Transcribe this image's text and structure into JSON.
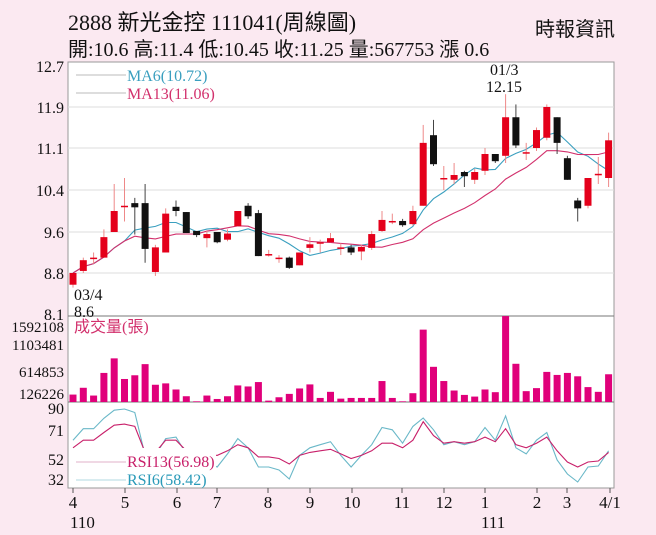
{
  "header": {
    "title": "2888  新光金控 111041(周線圖)",
    "quote": "開:10.6 高:11.4 低:10.45 收:11.25 量:567753 漲 0.6",
    "source": "時報資訊"
  },
  "colors": {
    "up": "#e4001b",
    "down": "#111111",
    "ma6": "#3a9fbf",
    "ma13": "#d2306c",
    "volume": "#e0007a",
    "rsi13": "#c8206a",
    "rsi6": "#6ab8c8",
    "background": "#fbe9f1"
  },
  "chart_data": [
    {
      "type": "candlestick",
      "name": "price",
      "y_ticks": [
        "12.7",
        "11.9",
        "11.1",
        "10.4",
        "9.6",
        "8.8",
        "8.1"
      ],
      "legend": [
        "MA6(10.72)",
        "MA13(11.06)"
      ],
      "annotations": {
        "high_date": "01/3",
        "high_value": "12.15",
        "low_date": "03/4",
        "low_value": "8.6"
      },
      "ohlc": [
        [
          8.6,
          8.8,
          8.55,
          8.8
        ],
        [
          8.84,
          9.1,
          8.8,
          9.05
        ],
        [
          9.1,
          9.2,
          8.98,
          9.1
        ],
        [
          9.1,
          9.65,
          9.1,
          9.5
        ],
        [
          9.6,
          10.5,
          9.6,
          10.0
        ],
        [
          10.1,
          10.6,
          9.8,
          10.1
        ],
        [
          10.15,
          10.25,
          9.55,
          10.07
        ],
        [
          10.15,
          10.5,
          9.0,
          9.27
        ],
        [
          8.82,
          9.35,
          8.75,
          9.3
        ],
        [
          9.2,
          10.05,
          9.2,
          9.95
        ],
        [
          10.08,
          10.2,
          9.9,
          10.0
        ],
        [
          9.98,
          9.98,
          9.58,
          9.58
        ],
        [
          9.62,
          9.62,
          9.5,
          9.54
        ],
        [
          9.48,
          9.62,
          9.3,
          9.56
        ],
        [
          9.6,
          9.6,
          9.38,
          9.4
        ],
        [
          9.45,
          9.65,
          9.42,
          9.57
        ],
        [
          9.71,
          10.0,
          9.71,
          10.0
        ],
        [
          10.1,
          10.15,
          9.85,
          9.9
        ],
        [
          9.96,
          10.02,
          9.13,
          9.13
        ],
        [
          9.17,
          9.25,
          9.12,
          9.17
        ],
        [
          9.1,
          9.15,
          9.0,
          9.1
        ],
        [
          9.1,
          9.12,
          8.88,
          8.9
        ],
        [
          8.95,
          9.2,
          8.95,
          9.2
        ],
        [
          9.29,
          9.5,
          9.2,
          9.36
        ],
        [
          9.4,
          9.45,
          9.2,
          9.4
        ],
        [
          9.4,
          9.58,
          9.4,
          9.48
        ],
        [
          9.3,
          9.38,
          9.15,
          9.3
        ],
        [
          9.3,
          9.35,
          9.15,
          9.2
        ],
        [
          9.22,
          9.35,
          9.05,
          9.31
        ],
        [
          9.29,
          9.62,
          9.25,
          9.56
        ],
        [
          9.62,
          10.0,
          9.6,
          9.83
        ],
        [
          9.81,
          9.95,
          9.75,
          9.81
        ],
        [
          9.81,
          9.85,
          9.7,
          9.73
        ],
        [
          9.75,
          10.1,
          9.72,
          10.0
        ],
        [
          10.1,
          11.55,
          10.1,
          11.2
        ],
        [
          11.35,
          11.65,
          10.8,
          10.83
        ],
        [
          10.6,
          10.8,
          10.4,
          10.6
        ],
        [
          10.57,
          10.85,
          10.5,
          10.65
        ],
        [
          10.7,
          10.72,
          10.45,
          10.63
        ],
        [
          10.57,
          10.75,
          10.5,
          10.7
        ],
        [
          10.72,
          11.1,
          10.65,
          11.0
        ],
        [
          11.0,
          11.0,
          10.85,
          10.88
        ],
        [
          10.97,
          12.15,
          10.85,
          11.7
        ],
        [
          11.7,
          11.95,
          11.1,
          11.15
        ],
        [
          11.03,
          11.2,
          10.9,
          11.03
        ],
        [
          11.1,
          11.5,
          11.05,
          11.45
        ],
        [
          11.3,
          11.95,
          11.25,
          11.9
        ],
        [
          11.7,
          11.7,
          11.0,
          11.2
        ],
        [
          10.93,
          10.97,
          10.57,
          10.57
        ],
        [
          10.2,
          10.25,
          9.8,
          10.05
        ],
        [
          10.1,
          10.6,
          10.05,
          10.6
        ],
        [
          10.67,
          10.95,
          10.5,
          10.67
        ],
        [
          10.6,
          11.4,
          10.45,
          11.25
        ]
      ]
    },
    {
      "type": "bar",
      "name": "volume",
      "title": "成交量(張)",
      "y_ticks": [
        "1592108",
        "1103481",
        "614853",
        "126226"
      ],
      "ylim": [
        0,
        1760000
      ],
      "values": [
        152000,
        291000,
        132000,
        595000,
        893000,
        471000,
        547000,
        775000,
        353000,
        381000,
        256000,
        118000,
        14000,
        132000,
        62000,
        118000,
        339000,
        318000,
        408000,
        28000,
        97000,
        166000,
        277000,
        360000,
        83000,
        208000,
        69000,
        83000,
        83000,
        83000,
        429000,
        83000,
        14000,
        180000,
        1481000,
        720000,
        429000,
        235000,
        145000,
        111000,
        256000,
        201000,
        1758000,
        782000,
        222000,
        284000,
        616000,
        554000,
        595000,
        526000,
        305000,
        208000,
        567753
      ]
    },
    {
      "type": "line",
      "name": "rsi",
      "y_ticks": [
        "90",
        "71",
        "52",
        "32"
      ],
      "series": [
        {
          "name": "RSI13(56.98)",
          "values": [
            60,
            65,
            65,
            70,
            76,
            77,
            75,
            57,
            57,
            65,
            65,
            58,
            57,
            56,
            55,
            58,
            62,
            60,
            54,
            54,
            53,
            48,
            55,
            57,
            58,
            59,
            56,
            53,
            55,
            58,
            63,
            63,
            60,
            65,
            79,
            68,
            63,
            64,
            63,
            64,
            67,
            64,
            73,
            62,
            60,
            63,
            67,
            58,
            50,
            45,
            50,
            51,
            57
          ]
        },
        {
          "name": "RSI6(58.42)",
          "values": [
            65,
            73,
            73,
            82,
            89,
            90,
            87,
            55,
            55,
            66,
            67,
            56,
            52,
            50,
            45,
            56,
            66,
            60,
            45,
            45,
            42,
            33,
            55,
            60,
            62,
            64,
            55,
            45,
            55,
            62,
            74,
            72,
            63,
            75,
            94,
            72,
            62,
            64,
            62,
            64,
            74,
            65,
            84,
            60,
            56,
            65,
            70,
            52,
            38,
            30,
            45,
            46,
            58
          ]
        }
      ]
    }
  ],
  "x_axis": {
    "months": [
      "4",
      "5",
      "6",
      "7",
      "8",
      "9",
      "10",
      "11",
      "12",
      "1",
      "2",
      "3",
      "4/1"
    ],
    "years": [
      "110",
      "111"
    ]
  }
}
